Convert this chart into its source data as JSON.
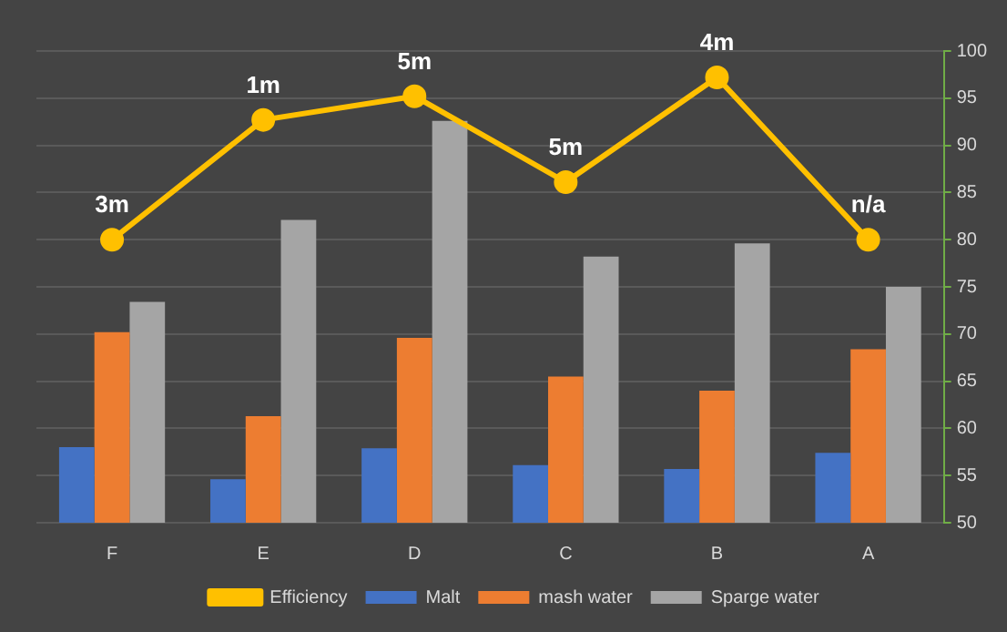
{
  "chart_data": {
    "type": "bar",
    "categories": [
      "F",
      "E",
      "D",
      "C",
      "B",
      "A"
    ],
    "series": [
      {
        "name": "Malt",
        "color": "#4472c4",
        "values": [
          58.0,
          54.6,
          57.9,
          56.1,
          55.7,
          57.4
        ]
      },
      {
        "name": "mash water",
        "color": "#ed7d31",
        "values": [
          70.2,
          61.3,
          69.6,
          65.5,
          64.0,
          68.4
        ]
      },
      {
        "name": "Sparge water",
        "color": "#a5a5a5",
        "values": [
          73.4,
          82.1,
          92.6,
          78.2,
          79.6,
          75.0
        ]
      },
      {
        "name": "Efficiency",
        "type": "line",
        "color": "#ffc000",
        "values": [
          80,
          92.7,
          95.2,
          86.1,
          97.2,
          80
        ],
        "marker": "circle",
        "line_style": "solid"
      }
    ],
    "ylim": [
      50,
      100
    ],
    "yticks": [
      50,
      55,
      60,
      65,
      70,
      75,
      80,
      85,
      90,
      95,
      100
    ],
    "grid": true,
    "legend": "bottom",
    "annotations": [
      "3m",
      "1m",
      "5m",
      "5m",
      "4m",
      "n/a"
    ]
  }
}
